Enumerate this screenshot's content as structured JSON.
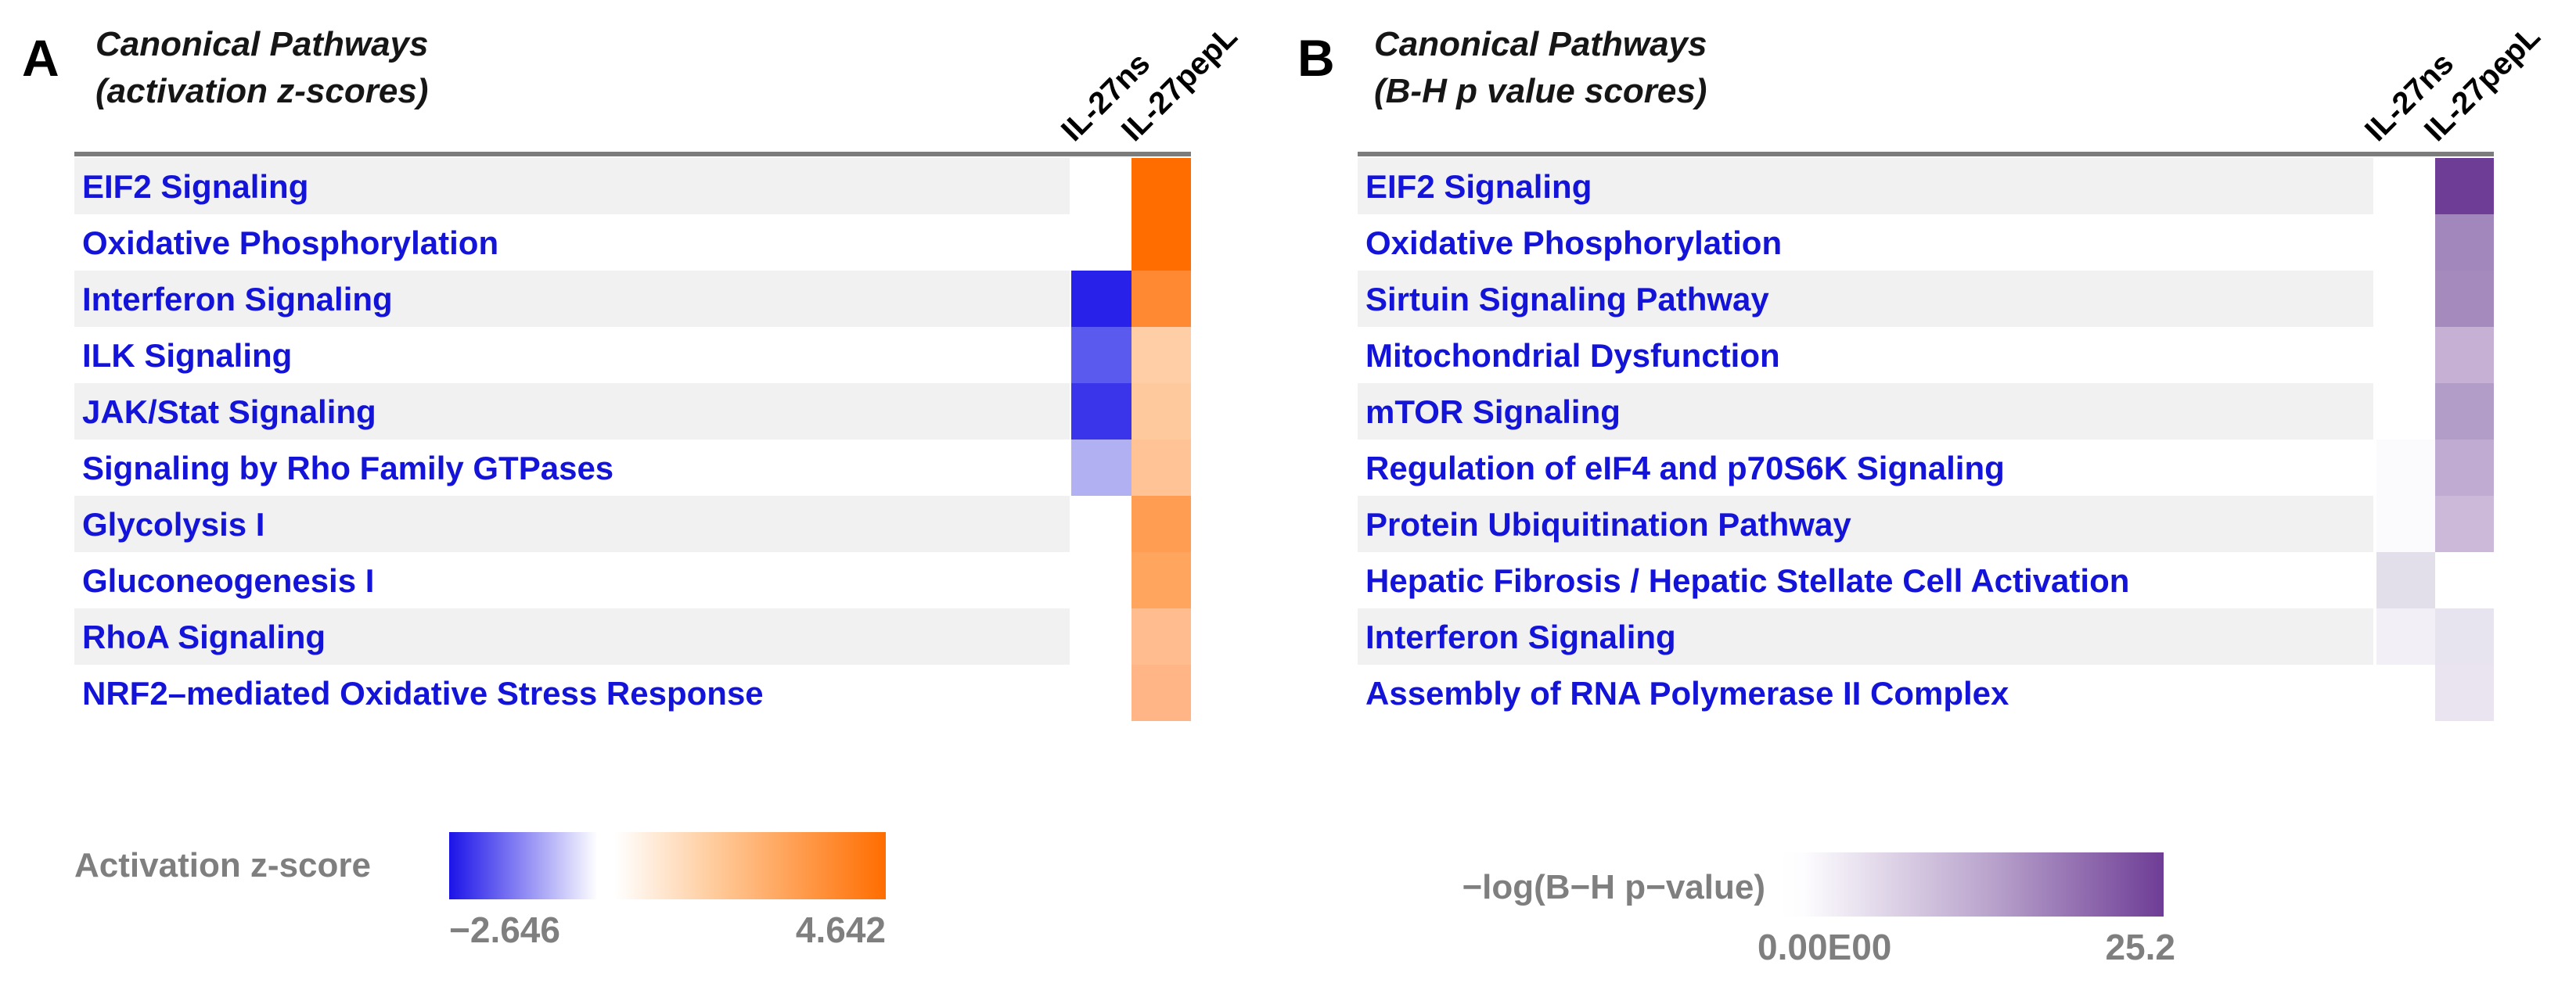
{
  "figure": {
    "panels": [
      {
        "label": "A",
        "title_line1": "Canonical Pathways",
        "title_line2": "(activation z-scores)",
        "columns": [
          "IL-27ns",
          "IL-27pepL"
        ],
        "rows": [
          {
            "pathway": "EIF2 Signaling",
            "cells": [
              null,
              "#FF6D00"
            ]
          },
          {
            "pathway": "Oxidative Phosphorylation",
            "cells": [
              null,
              "#FF6D00"
            ]
          },
          {
            "pathway": "Interferon Signaling",
            "cells": [
              "#2721E9",
              "#FF8833"
            ]
          },
          {
            "pathway": "ILK Signaling",
            "cells": [
              "#5A5BEE",
              "#FFCEA6"
            ]
          },
          {
            "pathway": "JAK/Stat Signaling",
            "cells": [
              "#3A35EB",
              "#FFC99E"
            ]
          },
          {
            "pathway": "Signaling by Rho Family GTPases",
            "cells": [
              "#B0B0F3",
              "#FFC395"
            ]
          },
          {
            "pathway": "Glycolysis I",
            "cells": [
              null,
              "#FF9E53"
            ]
          },
          {
            "pathway": "Gluconeogenesis I",
            "cells": [
              null,
              "#FFA55E"
            ]
          },
          {
            "pathway": "RhoA Signaling",
            "cells": [
              null,
              "#FFBC8E"
            ]
          },
          {
            "pathway": "NRF2–mediated Oxidative Stress Response",
            "cells": [
              null,
              "#FFB585"
            ]
          }
        ],
        "legend": {
          "label": "Activation z-score",
          "min": "−2.646",
          "max": "4.642",
          "colors": {
            "negative": "#1C13E8",
            "zero": "#FFFFFF",
            "positive": "#FF6D00"
          }
        }
      },
      {
        "label": "B",
        "title_line1": "Canonical Pathways",
        "title_line2": "(B-H p value scores)",
        "columns": [
          "IL-27ns",
          "IL-27pepL"
        ],
        "rows": [
          {
            "pathway": "EIF2 Signaling",
            "cells": [
              null,
              "#6E3D96"
            ]
          },
          {
            "pathway": "Oxidative Phosphorylation",
            "cells": [
              null,
              "#A287BD"
            ]
          },
          {
            "pathway": "Sirtuin Signaling Pathway",
            "cells": [
              null,
              "#A58ABD"
            ]
          },
          {
            "pathway": "Mitochondrial Dysfunction",
            "cells": [
              null,
              "#C6B1D5"
            ]
          },
          {
            "pathway": "mTOR Signaling",
            "cells": [
              null,
              "#B29CC8"
            ]
          },
          {
            "pathway": "Regulation of eIF4 and p70S6K Signaling",
            "cells": [
              "#FBFAFD",
              "#C0ABD2"
            ]
          },
          {
            "pathway": "Protein Ubiquitination Pathway",
            "cells": [
              "#FBFAFD",
              "#CCB9D9"
            ]
          },
          {
            "pathway": "Hepatic Fibrosis / Hepatic Stellate Cell Activation",
            "cells": [
              "#E3DFEA",
              null
            ]
          },
          {
            "pathway": "Interferon Signaling",
            "cells": [
              "#F2F0F6",
              "#E7E3EF"
            ]
          },
          {
            "pathway": "Assembly of RNA Polymerase II Complex",
            "cells": [
              null,
              "#E9E4F0"
            ]
          }
        ],
        "legend": {
          "label": "−log(B−H p−value)",
          "min": "0.00E00",
          "max": "25.2",
          "colors": {
            "zero": "#FFFFFF",
            "max": "#6E3D96"
          }
        }
      }
    ]
  },
  "chart_data": [
    {
      "type": "heatmap",
      "title": "Canonical Pathways (activation z-scores)",
      "columns": [
        "IL-27ns",
        "IL-27pepL"
      ],
      "rows": [
        "EIF2 Signaling",
        "Oxidative Phosphorylation",
        "Interferon Signaling",
        "ILK Signaling",
        "JAK/Stat Signaling",
        "Signaling by Rho Family GTPases",
        "Glycolysis I",
        "Gluconeogenesis I",
        "RhoA Signaling",
        "NRF2–mediated Oxidative Stress Response"
      ],
      "values": [
        [
          null,
          4.6
        ],
        [
          null,
          4.6
        ],
        [
          -2.6,
          3.6
        ],
        [
          -1.9,
          1.6
        ],
        [
          -2.4,
          1.7
        ],
        [
          -0.9,
          1.9
        ],
        [
          null,
          3.0
        ],
        [
          null,
          2.8
        ],
        [
          null,
          2.1
        ],
        [
          null,
          2.3
        ]
      ],
      "values_estimated_from_colors": true,
      "colorbar": {
        "label": "Activation z-score",
        "min": -2.646,
        "max": 4.642,
        "min_color": "#1C13E8",
        "mid_color": "#FFFFFF",
        "max_color": "#FF6D00"
      },
      "legend_position": "bottom"
    },
    {
      "type": "heatmap",
      "title": "Canonical Pathways (B-H p value scores)",
      "columns": [
        "IL-27ns",
        "IL-27pepL"
      ],
      "rows": [
        "EIF2 Signaling",
        "Oxidative Phosphorylation",
        "Sirtuin Signaling Pathway",
        "Mitochondrial Dysfunction",
        "mTOR Signaling",
        "Regulation of eIF4 and p70S6K Signaling",
        "Protein Ubiquitination Pathway",
        "Hepatic Fibrosis / Hepatic Stellate Cell Activation",
        "Interferon Signaling",
        "Assembly of RNA Polymerase II Complex"
      ],
      "values": [
        [
          null,
          25.2
        ],
        [
          null,
          14.0
        ],
        [
          null,
          13.5
        ],
        [
          null,
          8.0
        ],
        [
          null,
          11.0
        ],
        [
          0.3,
          9.0
        ],
        [
          0.3,
          7.0
        ],
        [
          2.5,
          null
        ],
        [
          1.0,
          2.2
        ],
        [
          null,
          2.0
        ]
      ],
      "values_estimated_from_colors": true,
      "colorbar": {
        "label": "−log(B−H p−value)",
        "min": 0,
        "max": 25.2,
        "min_color": "#FFFFFF",
        "max_color": "#6E3D96"
      },
      "legend_position": "bottom"
    }
  ]
}
